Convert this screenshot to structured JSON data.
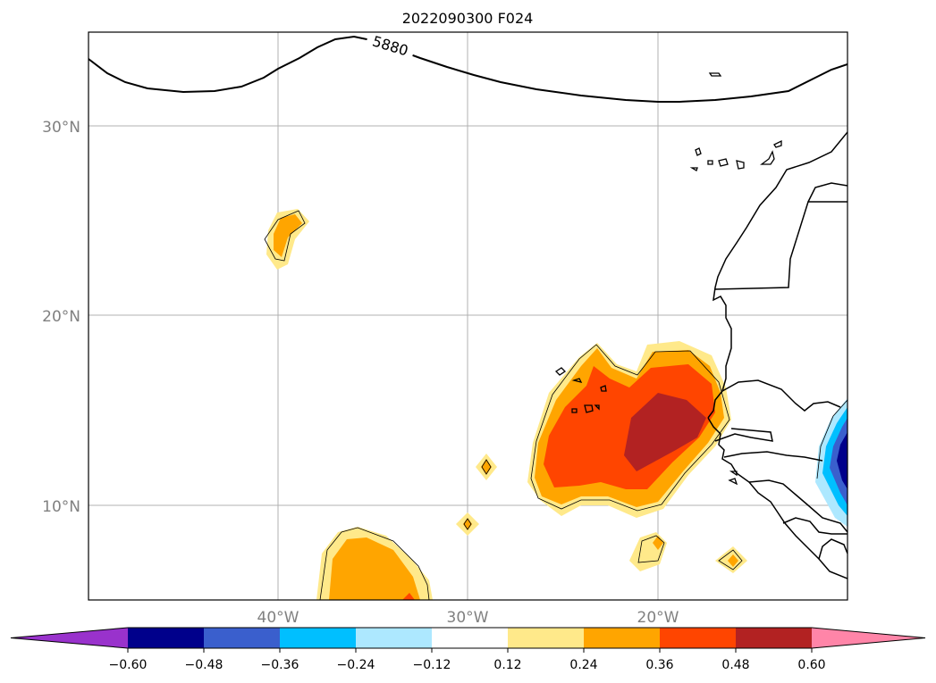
{
  "title": "2022090300 F024",
  "map": {
    "extent": {
      "lon": [
        -50,
        -10
      ],
      "lat": [
        5,
        35
      ]
    },
    "lat_ticks": [
      {
        "value": 30,
        "label": "30°N"
      },
      {
        "value": 20,
        "label": "20°N"
      },
      {
        "value": 10,
        "label": "10°N"
      }
    ],
    "lon_ticks": [
      {
        "value": -40,
        "label": "40°W"
      },
      {
        "value": -30,
        "label": "30°W"
      },
      {
        "value": -20,
        "label": "20°W"
      }
    ],
    "contour_label": "5880"
  },
  "colorbar": {
    "ticks": [
      "−0.60",
      "−0.48",
      "−0.36",
      "−0.24",
      "−0.12",
      "0.12",
      "0.24",
      "0.36",
      "0.48",
      "0.60"
    ],
    "colors": [
      "#9932cc",
      "#00008b",
      "#3a5fcd",
      "#00bfff",
      "#ade8ff",
      "#ffffff",
      "#ffe98a",
      "#ffa500",
      "#ff4500",
      "#b22222",
      "#ff85a8"
    ]
  },
  "chart_data": {
    "type": "heatmap",
    "title": "2022090300 F024",
    "xlim": [
      -50,
      -10
    ],
    "ylim": [
      5,
      35
    ],
    "contour_line": {
      "value": 5880
    },
    "levels": [
      -0.6,
      -0.48,
      -0.36,
      -0.24,
      -0.12,
      0.12,
      0.24,
      0.36,
      0.48,
      0.6
    ]
  }
}
